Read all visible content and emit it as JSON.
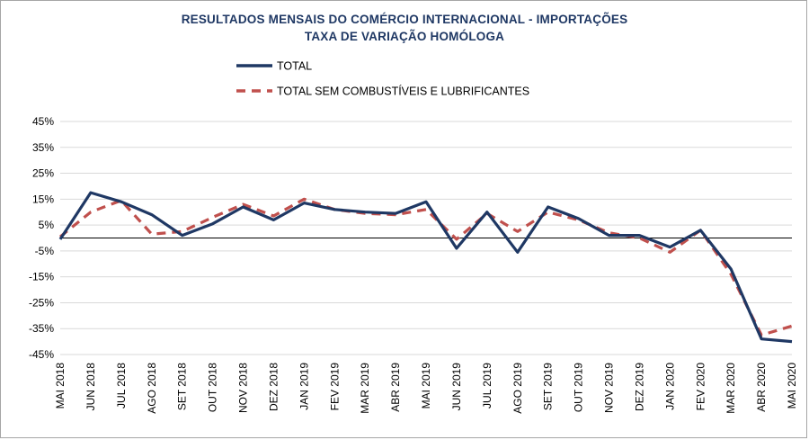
{
  "chart_data": {
    "type": "line",
    "title": "RESULTADOS MENSAIS DO COMÉRCIO INTERNACIONAL - IMPORTAÇÕES",
    "subtitle": "TAXA DE VARIAÇÃO HOMÓLOGA",
    "xlabel": "",
    "ylabel": "",
    "ylim": [
      -45,
      45
    ],
    "yticks": [
      "45%",
      "35%",
      "25%",
      "15%",
      "5%",
      "-5%",
      "-15%",
      "-25%",
      "-35%",
      "-45%"
    ],
    "grid": true,
    "legend_position": "top",
    "categories": [
      "MAI 2018",
      "JUN 2018",
      "JUL 2018",
      "AGO 2018",
      "SET 2018",
      "OUT 2018",
      "NOV 2018",
      "DEZ 2018",
      "JAN 2019",
      "FEV 2019",
      "MAR 2019",
      "ABR 2019",
      "MAI 2019",
      "JUN 2019",
      "JUL 2019",
      "AGO 2019",
      "SET 2019",
      "OUT 2019",
      "NOV 2019",
      "DEZ 2019",
      "JAN 2020",
      "FEV 2020",
      "MAR 2020",
      "ABR 2020",
      "MAI 2020"
    ],
    "series": [
      {
        "name": "TOTAL",
        "color": "#1f3864",
        "style": "solid",
        "values": [
          -0.5,
          17.5,
          14,
          9,
          1,
          5.5,
          12,
          7,
          13.5,
          11,
          10,
          9.5,
          14,
          -4,
          10,
          -5.5,
          12,
          7.5,
          1,
          1,
          -3.5,
          3,
          -12,
          -39,
          -40
        ]
      },
      {
        "name": "TOTAL SEM COMBUSTÍVEIS E LUBRIFICANTES",
        "color": "#c0504d",
        "style": "dashed",
        "values": [
          0.5,
          10,
          14.5,
          1.5,
          2.5,
          8,
          13,
          8.5,
          15,
          11,
          9.5,
          9,
          11,
          -0.5,
          9.5,
          2.5,
          10,
          7,
          2,
          0,
          -5.5,
          3,
          -14,
          -37.5,
          -34
        ]
      }
    ]
  }
}
